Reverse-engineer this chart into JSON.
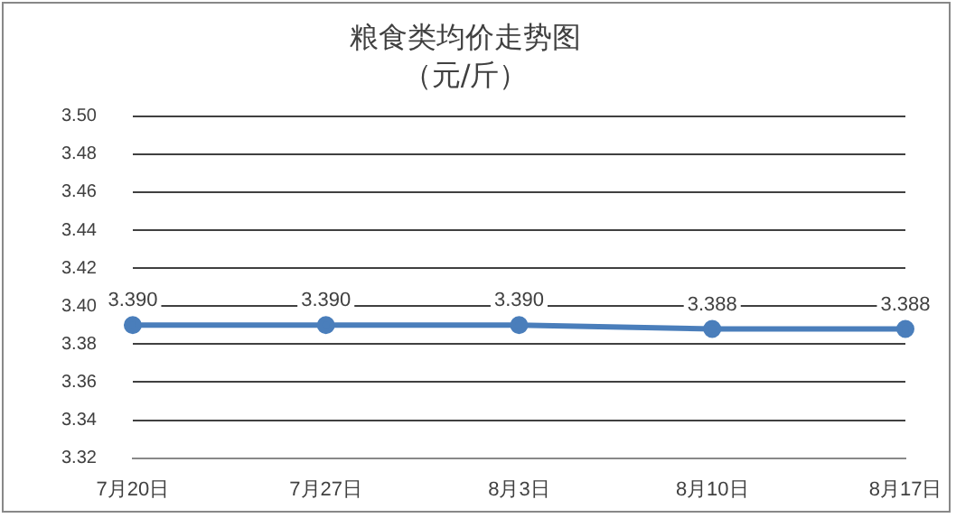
{
  "chart_data": {
    "type": "line",
    "title": "粮食类均价走势图",
    "subtitle": "（元/斤）",
    "categories": [
      "7月20日",
      "7月27日",
      "8月3日",
      "8月10日",
      "8月17日"
    ],
    "series": [
      {
        "color": "#4a7ebb",
        "values": [
          3.39,
          3.39,
          3.39,
          3.388,
          3.388
        ]
      }
    ],
    "value_labels": [
      "3.390",
      "3.390",
      "3.390",
      "3.388",
      "3.388"
    ],
    "ylim": [
      3.32,
      3.5
    ],
    "yticks": [
      3.32,
      3.34,
      3.36,
      3.38,
      {
        "value": 3.4,
        "label": "3.40"
      },
      3.42,
      3.44,
      3.46,
      3.48,
      {
        "value": 3.5,
        "label": "3.50"
      }
    ],
    "grid": "y",
    "legend": false,
    "marker": "circle",
    "line_style": "solid"
  }
}
